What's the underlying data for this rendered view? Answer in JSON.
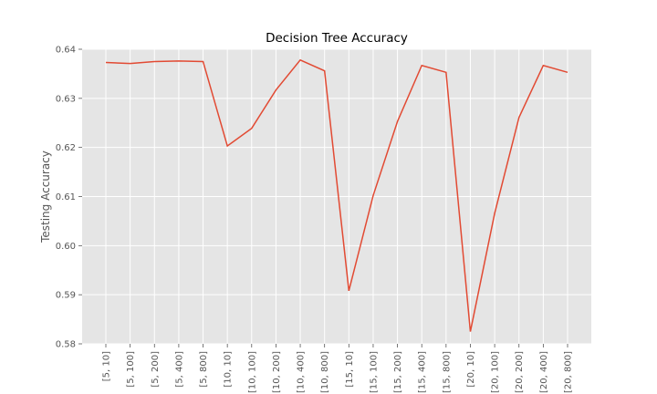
{
  "chart_data": {
    "type": "line",
    "title": "Decision Tree Accuracy",
    "xlabel": "",
    "ylabel": "Testing Accuracy",
    "categories": [
      "[5, 10]",
      "[5, 100]",
      "[5, 200]",
      "[5, 400]",
      "[5, 800]",
      "[10, 10]",
      "[10, 100]",
      "[10, 200]",
      "[10, 400]",
      "[10, 800]",
      "[15, 10]",
      "[15, 100]",
      "[15, 200]",
      "[15, 400]",
      "[15, 800]",
      "[20, 10]",
      "[20, 100]",
      "[20, 200]",
      "[20, 400]",
      "[20, 800]"
    ],
    "series": [
      {
        "values": [
          0.6373,
          0.6371,
          0.6375,
          0.6376,
          0.6375,
          0.6203,
          0.6239,
          0.6317,
          0.6378,
          0.6356,
          0.5908,
          0.6102,
          0.6253,
          0.6367,
          0.6353,
          0.5825,
          0.6066,
          0.6261,
          0.6367,
          0.6353
        ],
        "color": "#e24a33"
      }
    ],
    "yticks": [
      0.58,
      0.59,
      0.6,
      0.61,
      0.62,
      0.63,
      0.64
    ],
    "ytick_labels": [
      "0.58",
      "0.59",
      "0.60",
      "0.61",
      "0.62",
      "0.63",
      "0.64"
    ],
    "ylim": [
      0.58,
      0.64
    ],
    "grid": true,
    "style": {
      "background": "#e5e5e5",
      "grid_color": "#ffffff",
      "line_color": "#e24a33"
    }
  }
}
